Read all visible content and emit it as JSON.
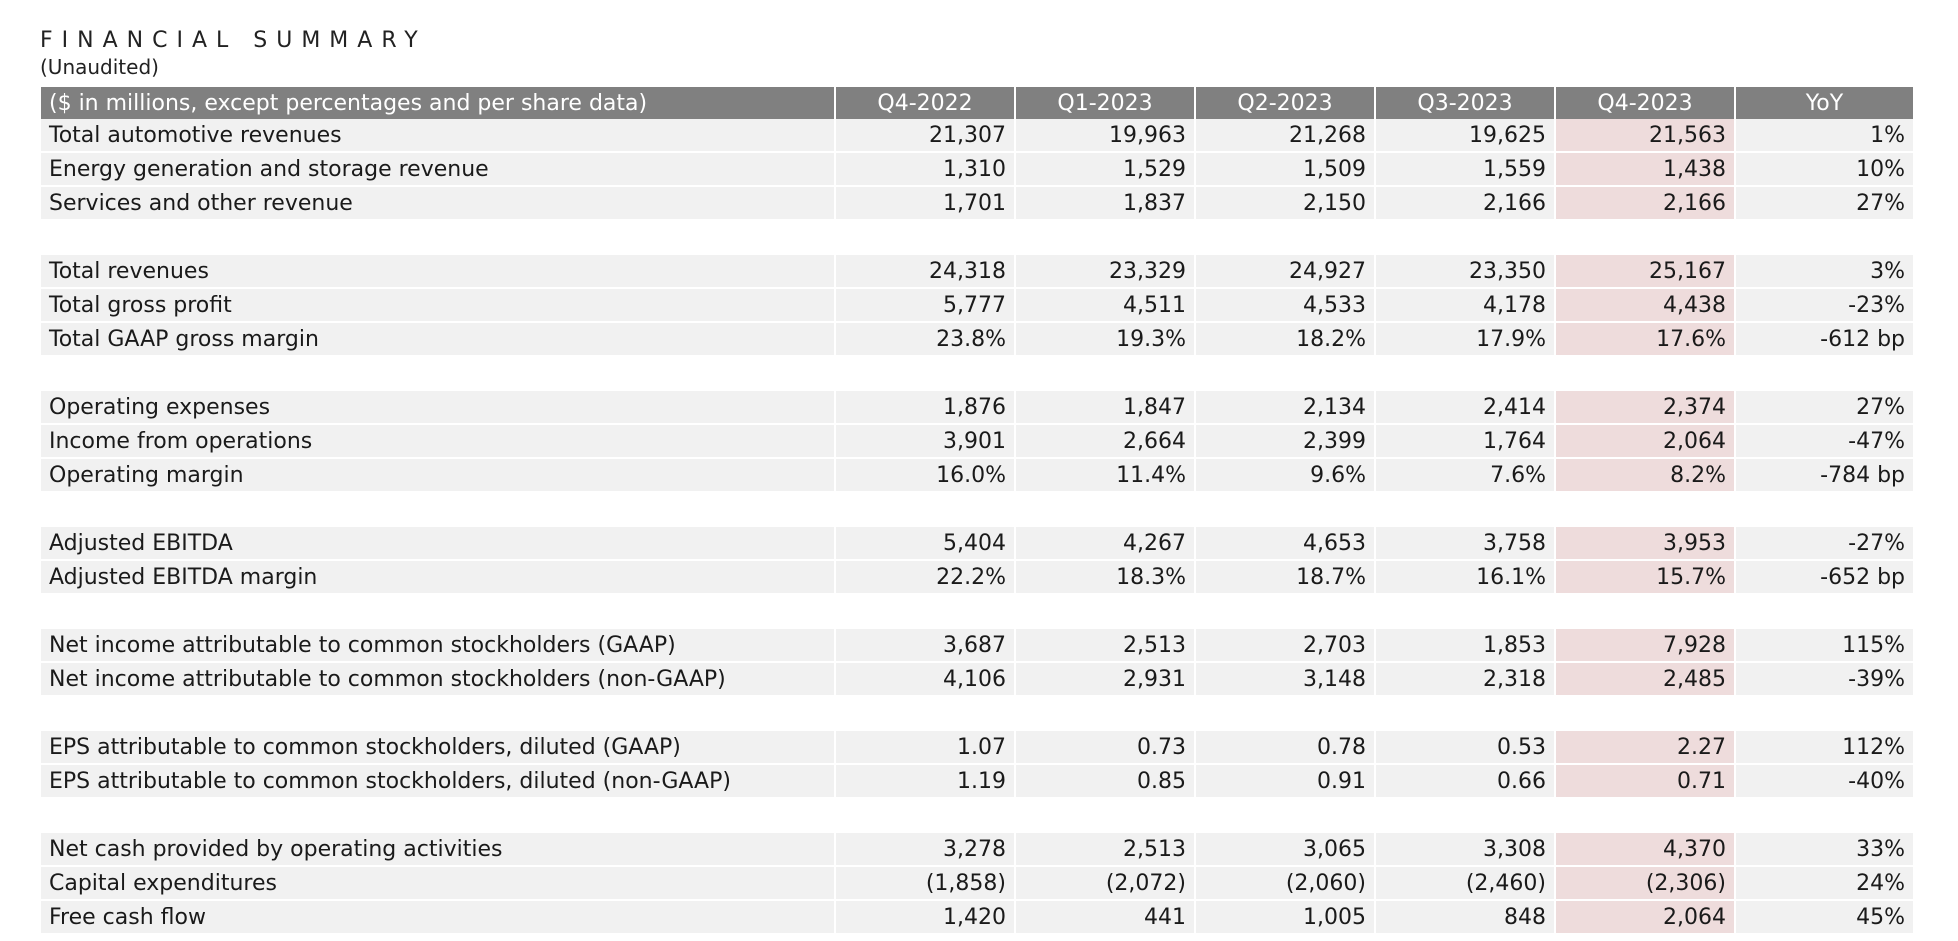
{
  "title": "FINANCIAL SUMMARY",
  "subtitle": "(Unaudited)",
  "table": {
    "headers": [
      "($ in millions, except percentages and per share data)",
      "Q4-2022",
      "Q1-2023",
      "Q2-2023",
      "Q3-2023",
      "Q4-2023",
      "YoY"
    ],
    "highlight_color": "#eedcdc",
    "header_bg_color": "#808080",
    "groups": [
      [
        [
          "Total automotive revenues",
          "21,307",
          "19,963",
          "21,268",
          "19,625",
          "21,563",
          "1%"
        ],
        [
          "Energy generation and storage revenue",
          "1,310",
          "1,529",
          "1,509",
          "1,559",
          "1,438",
          "10%"
        ],
        [
          "Services and other revenue",
          "1,701",
          "1,837",
          "2,150",
          "2,166",
          "2,166",
          "27%"
        ]
      ],
      [
        [
          "Total revenues",
          "24,318",
          "23,329",
          "24,927",
          "23,350",
          "25,167",
          "3%"
        ],
        [
          "Total gross profit",
          "5,777",
          "4,511",
          "4,533",
          "4,178",
          "4,438",
          "-23%"
        ],
        [
          "Total GAAP gross margin",
          "23.8%",
          "19.3%",
          "18.2%",
          "17.9%",
          "17.6%",
          "-612 bp"
        ]
      ],
      [
        [
          "Operating expenses",
          "1,876",
          "1,847",
          "2,134",
          "2,414",
          "2,374",
          "27%"
        ],
        [
          "Income from operations",
          "3,901",
          "2,664",
          "2,399",
          "1,764",
          "2,064",
          "-47%"
        ],
        [
          "Operating margin",
          "16.0%",
          "11.4%",
          "9.6%",
          "7.6%",
          "8.2%",
          "-784 bp"
        ]
      ],
      [
        [
          "Adjusted EBITDA",
          "5,404",
          "4,267",
          "4,653",
          "3,758",
          "3,953",
          "-27%"
        ],
        [
          "Adjusted EBITDA margin",
          "22.2%",
          "18.3%",
          "18.7%",
          "16.1%",
          "15.7%",
          "-652 bp"
        ]
      ],
      [
        [
          "Net income attributable to common stockholders (GAAP)",
          "3,687",
          "2,513",
          "2,703",
          "1,853",
          "7,928",
          "115%"
        ],
        [
          "Net income attributable to common stockholders (non-GAAP)",
          "4,106",
          "2,931",
          "3,148",
          "2,318",
          "2,485",
          "-39%"
        ]
      ],
      [
        [
          "EPS attributable to common stockholders, diluted (GAAP)",
          "1.07",
          "0.73",
          "0.78",
          "0.53",
          "2.27",
          "112%"
        ],
        [
          "EPS attributable to common stockholders, diluted (non-GAAP)",
          "1.19",
          "0.85",
          "0.91",
          "0.66",
          "0.71",
          "-40%"
        ]
      ],
      [
        [
          "Net cash provided by operating activities",
          "3,278",
          "2,513",
          "3,065",
          "3,308",
          "4,370",
          "33%"
        ],
        [
          "Capital expenditures",
          "(1,858)",
          "(2,072)",
          "(2,060)",
          "(2,460)",
          "(2,306)",
          "24%"
        ],
        [
          "Free cash flow",
          "1,420",
          "441",
          "1,005",
          "848",
          "2,064",
          "45%"
        ]
      ]
    ]
  }
}
